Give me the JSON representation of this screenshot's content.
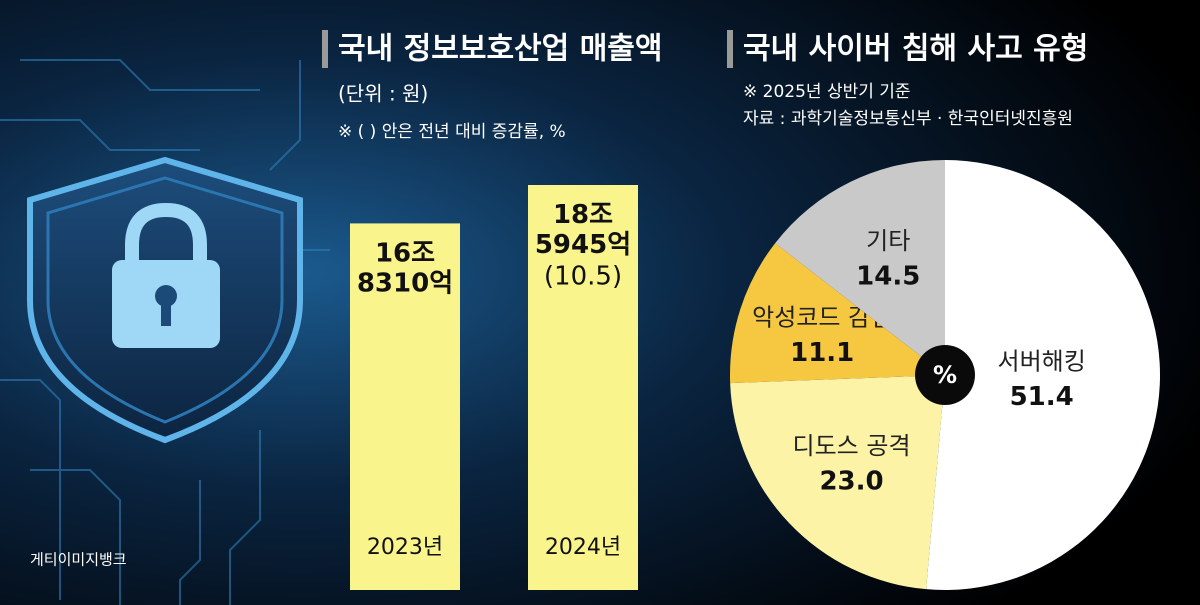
{
  "chart_data": [
    {
      "type": "bar",
      "title": "국내 정보보호산업 매출액",
      "subtitle": "(단위 : 원)",
      "note": "※ (   ) 안은 전년 대비 증감률, %",
      "categories": [
        "2023년",
        "2024년"
      ],
      "values": [
        16831000000000,
        18594500000000
      ],
      "value_labels": [
        "16조\n8310억",
        "18조\n5945억"
      ],
      "growth": [
        null,
        10.5
      ],
      "growth_labels": [
        null,
        "(10.5)"
      ],
      "color": "#faf48c"
    },
    {
      "type": "pie",
      "title": "국내 사이버 침해 사고 유형",
      "note": "※ 2025년 상반기 기준",
      "source": "자료 : 과학기술정보통신부 · 한국인터넷진흥원",
      "center_label": "%",
      "categories": [
        "서버해킹",
        "디도스 공격",
        "악성코드 감염",
        "기타"
      ],
      "values": [
        51.4,
        23,
        11.1,
        14.5
      ],
      "value_labels": [
        "51.4",
        "23.0",
        "11.1",
        "14.5"
      ],
      "colors": [
        "#ffffff",
        "#fcf3a6",
        "#f6c842",
        "#c9c9c9"
      ]
    }
  ],
  "credit": "게티이미지뱅크"
}
